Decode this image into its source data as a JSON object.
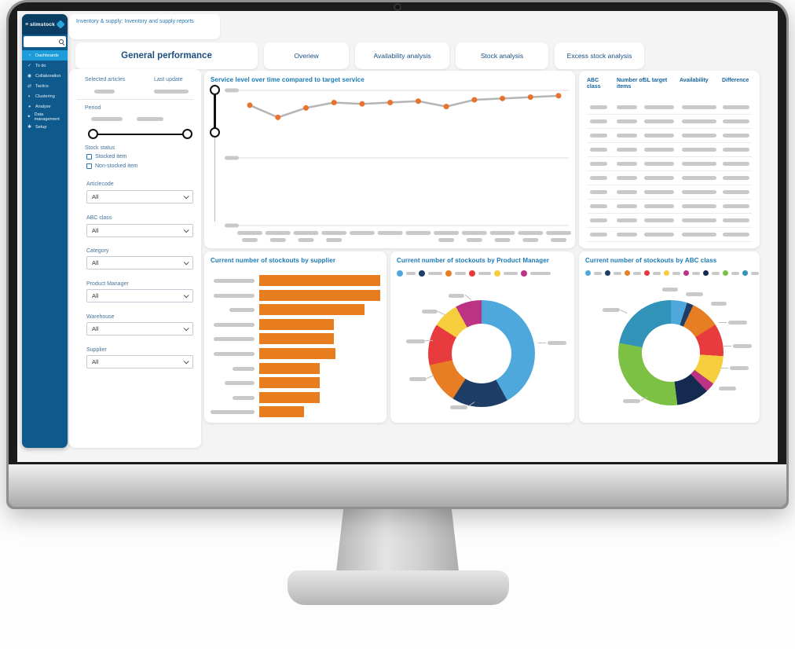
{
  "palette": {
    "accent_blue": "#1778b5",
    "sidebar_bg": "#0e5a8c",
    "sidebar_header_bg": "#0a3e64",
    "sidebar_active_bg": "#1c9cd9",
    "bar_orange": "#e87d1f",
    "dot_orange": "#e8722e",
    "line_gray": "#b5b5b5",
    "placeholder_gray": "#c9c9c9"
  },
  "header": {
    "title": "Inventory & supply: Inventory and supply reports"
  },
  "sidebar": {
    "logo_text": "slimstock",
    "search_placeholder": "",
    "items": [
      {
        "label": "Dashboards",
        "icon": "dashboard-icon",
        "glyph": "◔",
        "active": true
      },
      {
        "label": "To do",
        "icon": "check-icon",
        "glyph": "✓",
        "active": false
      },
      {
        "label": "Collaboration",
        "icon": "people-icon",
        "glyph": "◉",
        "active": false
      },
      {
        "label": "Tactics",
        "icon": "arrows-icon",
        "glyph": "⇄",
        "active": false
      },
      {
        "label": "Clustering",
        "icon": "cluster-icon",
        "glyph": "◐",
        "active": false
      },
      {
        "label": "Analyse",
        "icon": "analyse-icon",
        "glyph": "◕",
        "active": false
      },
      {
        "label": "Data management",
        "icon": "wrench-icon",
        "glyph": "✦",
        "active": false
      },
      {
        "label": "Setup",
        "icon": "gear-icon",
        "glyph": "✱",
        "active": false
      }
    ]
  },
  "tabs": [
    {
      "label": "General performance",
      "active": true
    },
    {
      "label": "Overiew",
      "active": false
    },
    {
      "label": "Availability analysis",
      "active": false
    },
    {
      "label": "Stock analysis",
      "active": false
    },
    {
      "label": "Excess stock analysis",
      "active": false
    }
  ],
  "filters": {
    "selected_articles_label": "Selected articles",
    "last_update_label": "Last update",
    "period_label": "Period",
    "stock_status_label": "Stock status",
    "checkboxes": [
      {
        "label": "Stocked item",
        "checked": false
      },
      {
        "label": "Non-stocked item",
        "checked": false
      }
    ],
    "dropdowns": [
      {
        "label": "Articlecode",
        "value": "All"
      },
      {
        "label": "ABC class",
        "value": "All"
      },
      {
        "label": "Category",
        "value": "All"
      },
      {
        "label": "Product Manager",
        "value": "All"
      },
      {
        "label": "Warehouse",
        "value": "All"
      },
      {
        "label": "Supplier",
        "value": "All"
      }
    ]
  },
  "table": {
    "headers": [
      "ABC class",
      "Number of items",
      "SL target",
      "Availability",
      "Difference"
    ],
    "row_count": 10,
    "cell_values_redacted": true
  },
  "chart_data": [
    {
      "type": "line",
      "title": "Service level over time compared to target service",
      "series": [
        {
          "name": "service level",
          "values": [
            89,
            80,
            87,
            91,
            90,
            91,
            92,
            88,
            93,
            94,
            95,
            96
          ]
        }
      ],
      "n_points": 12,
      "x_labels_redacted": true,
      "y_tick_labels_redacted": true,
      "ylim": [
        0,
        100
      ],
      "gridlines": [
        100,
        50,
        0
      ],
      "line_color": "#b5b5b5",
      "marker_color": "#e8722e",
      "legend_position": "none"
    },
    {
      "type": "bar",
      "orientation": "horizontal",
      "title": "Current number of stockouts by supplier",
      "values": [
        100,
        100,
        87,
        62,
        62,
        63,
        50,
        50,
        50,
        37
      ],
      "categories_redacted": true,
      "bar_color": "#e87d1f",
      "xlim": [
        0,
        100
      ]
    },
    {
      "type": "pie",
      "donut": true,
      "title": "Current number of stockouts by Product Manager",
      "values": [
        42,
        17,
        12.5,
        12.5,
        8,
        8
      ],
      "colors": [
        "#4fa8dc",
        "#1f3e67",
        "#e87e23",
        "#e73b3e",
        "#f6ce3d",
        "#bc3383"
      ],
      "labels_redacted": true,
      "legend_position": "top"
    },
    {
      "type": "pie",
      "donut": true,
      "title": "Current number of stockouts by ABC class",
      "values": [
        5,
        2,
        9,
        10,
        9,
        3,
        10,
        30,
        22
      ],
      "colors": [
        "#4fa8dc",
        "#1f3e67",
        "#e87e23",
        "#e73b3e",
        "#f6ce3d",
        "#bc3383",
        "#152a50",
        "#7cc143",
        "#3293b8"
      ],
      "labels_redacted": true,
      "legend_position": "top"
    }
  ]
}
